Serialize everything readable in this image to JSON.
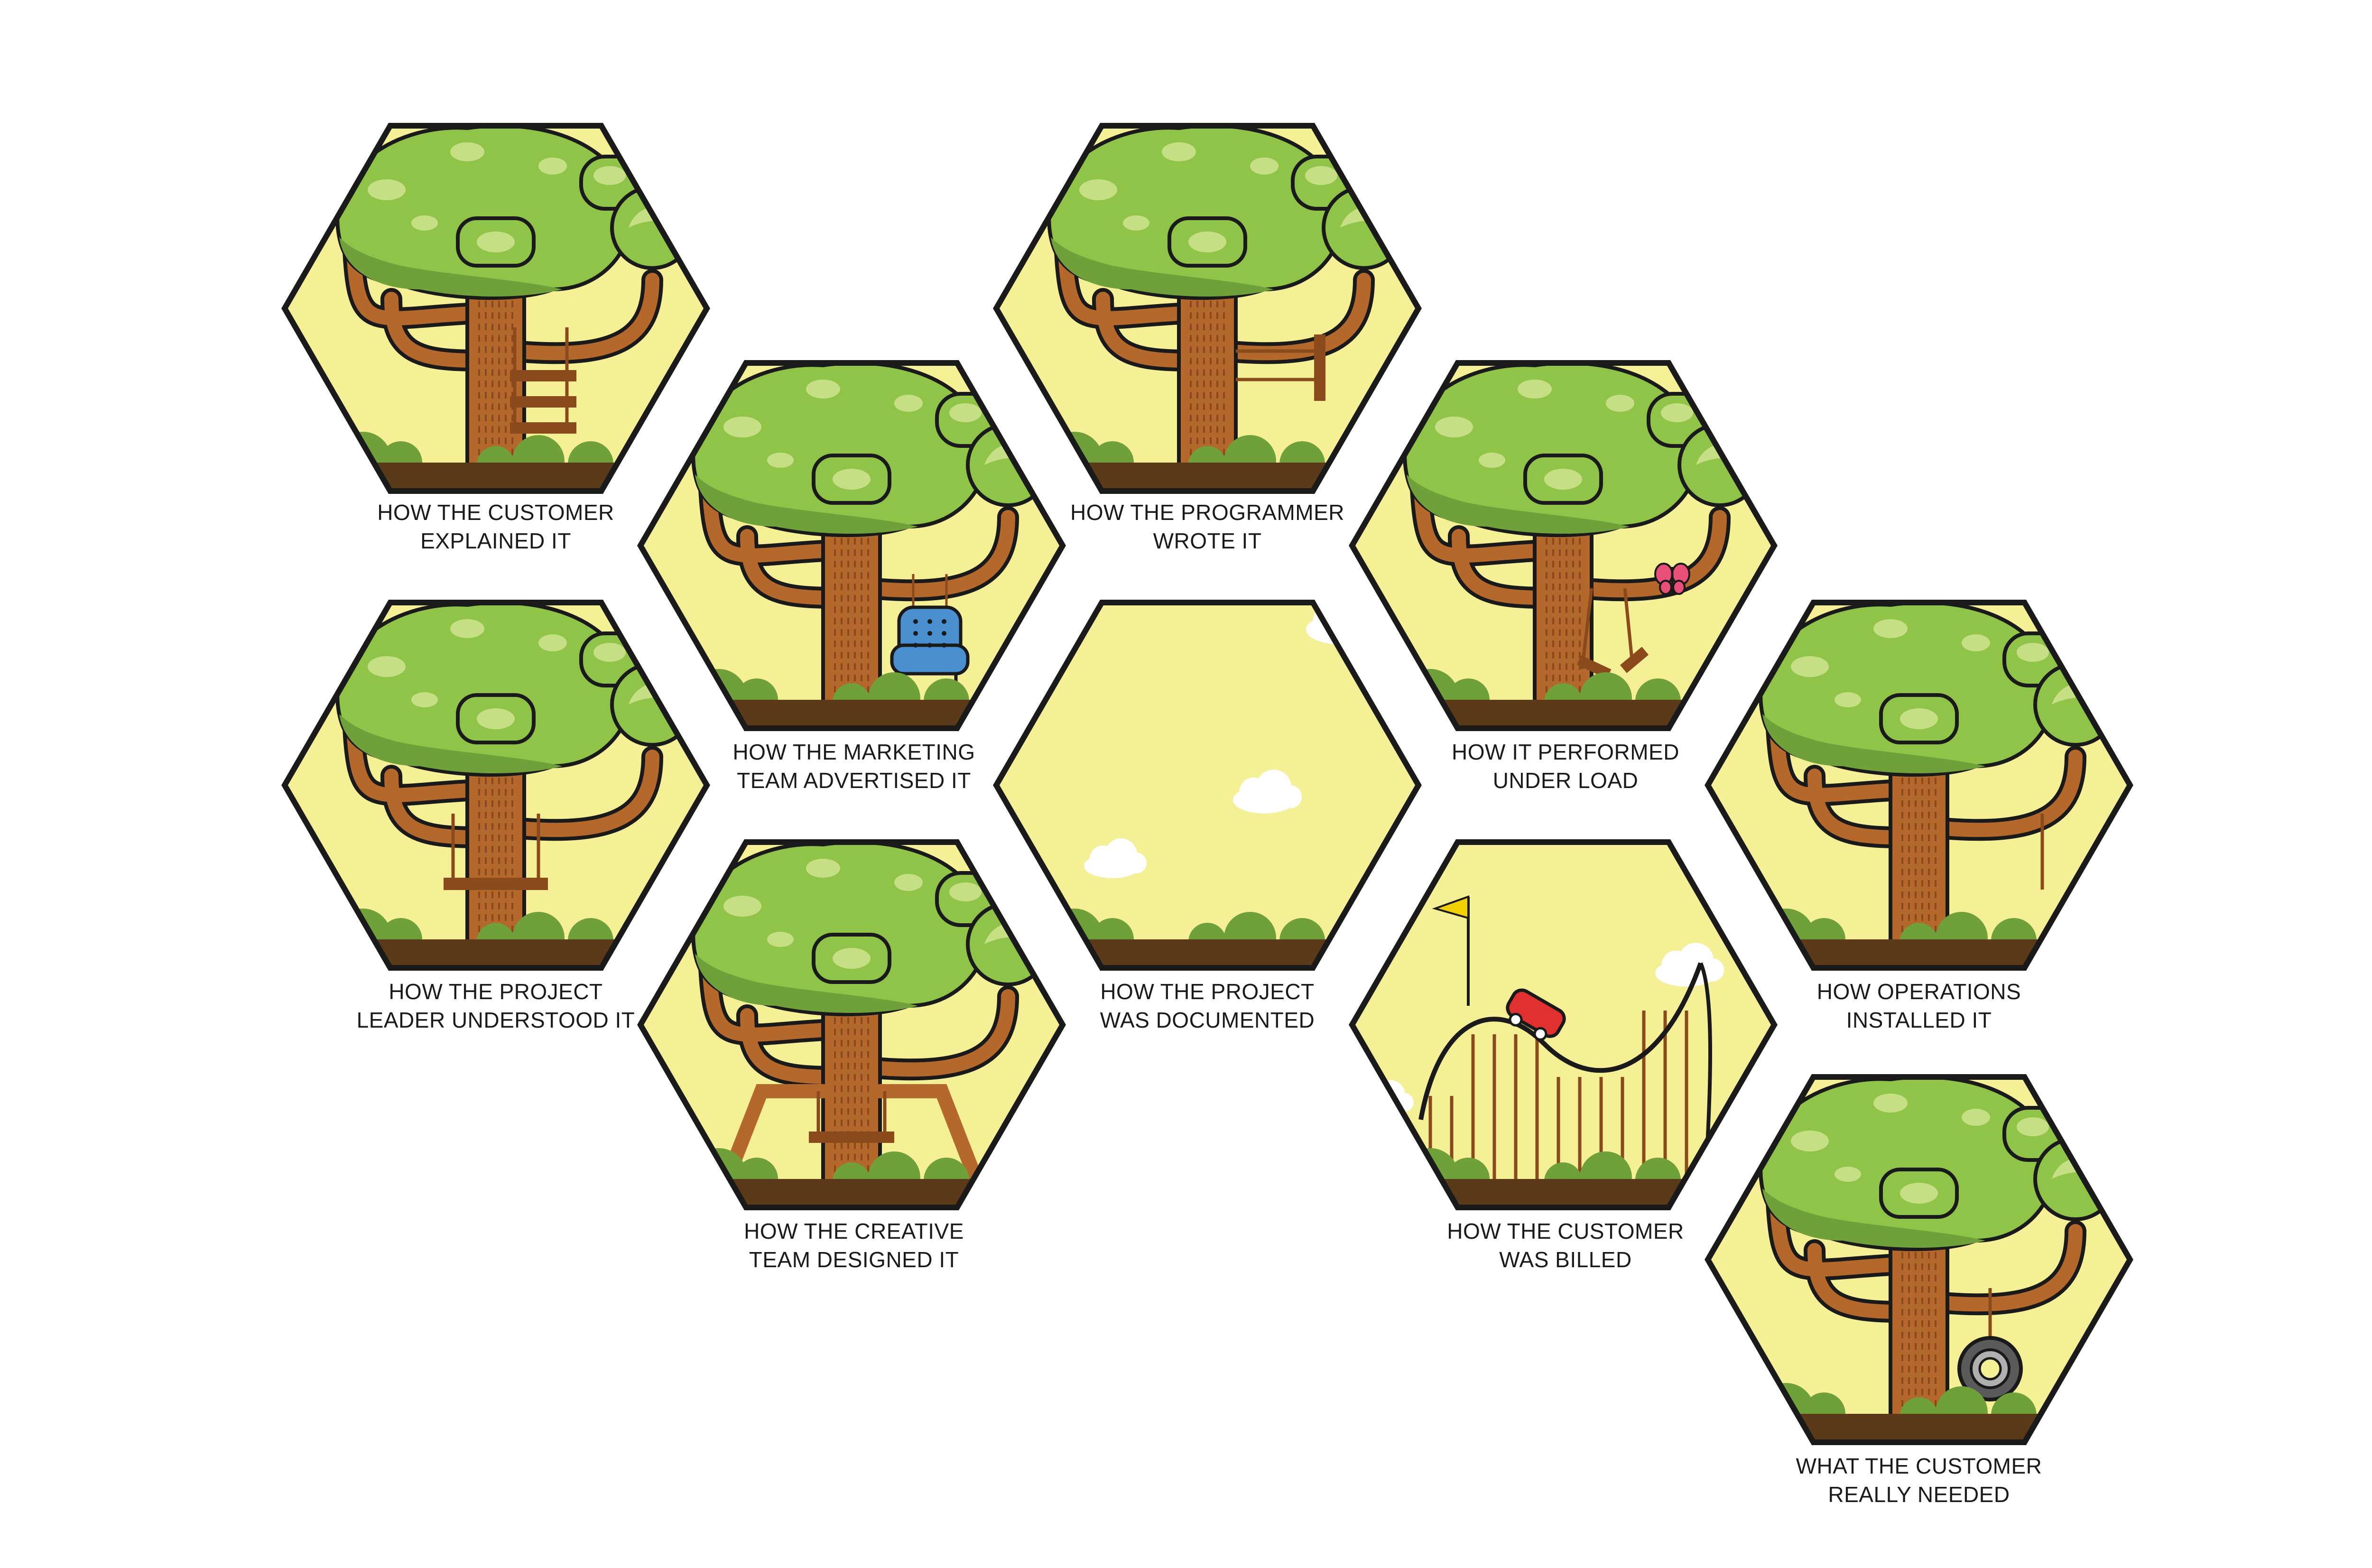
{
  "panels": [
    {
      "id": "customer-explained",
      "caption": [
        "HOW THE CUSTOMER",
        "EXPLAINED IT"
      ],
      "variant": "ladder-swing"
    },
    {
      "id": "project-leader-understood",
      "caption": [
        "HOW THE PROJECT",
        "LEADER UNDERSTOOD IT"
      ],
      "variant": "trunk-swing"
    },
    {
      "id": "marketing-advertised",
      "caption": [
        "HOW THE MARKETING",
        "TEAM ADVERTISED IT"
      ],
      "variant": "armchair"
    },
    {
      "id": "creative-designed",
      "caption": [
        "HOW THE CREATIVE",
        "TEAM DESIGNED IT"
      ],
      "variant": "frame-swing"
    },
    {
      "id": "programmer-wrote",
      "caption": [
        "HOW THE PROGRAMMER",
        "WROTE IT"
      ],
      "variant": "sideways-swing"
    },
    {
      "id": "project-documented",
      "caption": [
        "HOW THE PROJECT",
        "WAS DOCUMENTED"
      ],
      "variant": "empty"
    },
    {
      "id": "performed-under-load",
      "caption": [
        "HOW IT PERFORMED",
        "UNDER LOAD"
      ],
      "variant": "broken-swing"
    },
    {
      "id": "customer-billed",
      "caption": [
        "HOW THE CUSTOMER",
        "WAS BILLED"
      ],
      "variant": "rollercoaster"
    },
    {
      "id": "operations-installed",
      "caption": [
        "HOW OPERATIONS",
        "INSTALLED IT"
      ],
      "variant": "single-rope"
    },
    {
      "id": "customer-needed",
      "caption": [
        "WHAT THE CUSTOMER",
        "REALLY NEEDED"
      ],
      "variant": "tire-swing"
    }
  ],
  "colors": {
    "sky": "#f5f096",
    "outline": "#1a1a1a",
    "leaf_light": "#8fc449",
    "leaf_dark": "#6fa03a",
    "leaf_pale": "#c6df84",
    "trunk": "#b4682c",
    "trunk_dark": "#8a4a1c",
    "branch": "#b4682c",
    "ground": "#5b3a1a",
    "bush": "#6fa03a",
    "cloud": "#ffffff",
    "chair": "#4a8fd0",
    "butterfly": "#e8507a",
    "car": "#e03030",
    "flag": "#f0d000"
  }
}
